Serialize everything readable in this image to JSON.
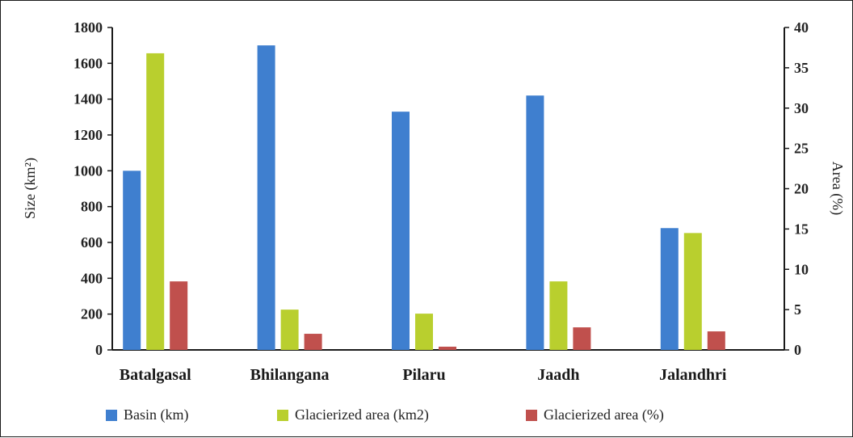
{
  "chart_data": {
    "type": "bar",
    "categories": [
      "Batalgasal",
      "Bhilangana",
      "Pilaru",
      "Jaadh",
      "Jalandhri"
    ],
    "series": [
      {
        "name": "Basin (km)",
        "axis": "left",
        "color": "#3f7fcf",
        "values": [
          1000,
          1700,
          1330,
          1420,
          680
        ]
      },
      {
        "name": "Glacierized area (km2)",
        "axis": "right",
        "color": "#b9cf2e",
        "values": [
          36.8,
          5,
          4.5,
          8.5,
          14.5
        ]
      },
      {
        "name": "Glacierized area (%)",
        "axis": "right",
        "color": "#c0504d",
        "values": [
          8.5,
          2,
          0.4,
          2.8,
          2.3
        ]
      }
    ],
    "left_axis": {
      "label": "Size (km²)",
      "ylim": [
        0,
        1800
      ],
      "ticks": [
        "0",
        "200",
        "400",
        "600",
        "800",
        "1000",
        "1200",
        "1400",
        "1600",
        "1800"
      ]
    },
    "right_axis": {
      "label": "Area (%)",
      "ylim": [
        0,
        40
      ],
      "ticks": [
        "0",
        "5",
        "10",
        "15",
        "20",
        "25",
        "30",
        "35",
        "40"
      ]
    },
    "legend_position": "bottom",
    "grid": false
  }
}
